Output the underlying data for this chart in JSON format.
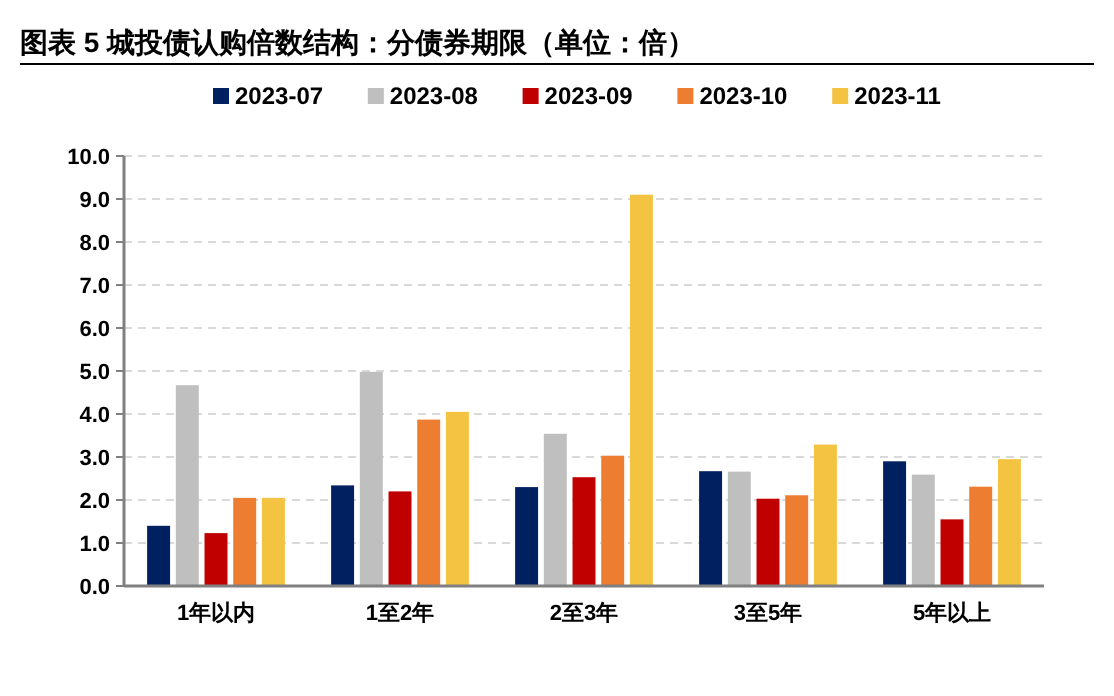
{
  "chart_data": {
    "type": "bar",
    "title": "图表 5 城投债认购倍数结构：分债券期限（单位：倍）",
    "categories": [
      "1年以内",
      "1至2年",
      "2至3年",
      "3至5年",
      "5年以上"
    ],
    "series": [
      {
        "name": "2023-07",
        "color": "#002060",
        "values": [
          1.4,
          2.34,
          2.3,
          2.67,
          2.9
        ]
      },
      {
        "name": "2023-08",
        "color": "#bfbfbf",
        "values": [
          4.67,
          4.98,
          3.54,
          2.66,
          2.59
        ]
      },
      {
        "name": "2023-09",
        "color": "#c00000",
        "values": [
          1.23,
          2.2,
          2.53,
          2.03,
          1.55
        ]
      },
      {
        "name": "2023-10",
        "color": "#ed7d31",
        "values": [
          2.05,
          3.87,
          3.03,
          2.11,
          2.31
        ]
      },
      {
        "name": "2023-11",
        "color": "#f5c342",
        "values": [
          2.05,
          4.05,
          9.1,
          3.29,
          2.95
        ]
      }
    ],
    "ylim": [
      0,
      10
    ],
    "yticks": [
      {
        "value": 0,
        "label": "0.0"
      },
      {
        "value": 1,
        "label": "1.0"
      },
      {
        "value": 2,
        "label": "2.0"
      },
      {
        "value": 3,
        "label": "3.0"
      },
      {
        "value": 4,
        "label": "4.0"
      },
      {
        "value": 5,
        "label": "5.0"
      },
      {
        "value": 6,
        "label": "6.0"
      },
      {
        "value": 7,
        "label": "7.0"
      },
      {
        "value": 8,
        "label": "8.0"
      },
      {
        "value": 9,
        "label": "9.0"
      },
      {
        "value": 10,
        "label": "10.0"
      }
    ],
    "grid": "y",
    "legend": "top"
  }
}
